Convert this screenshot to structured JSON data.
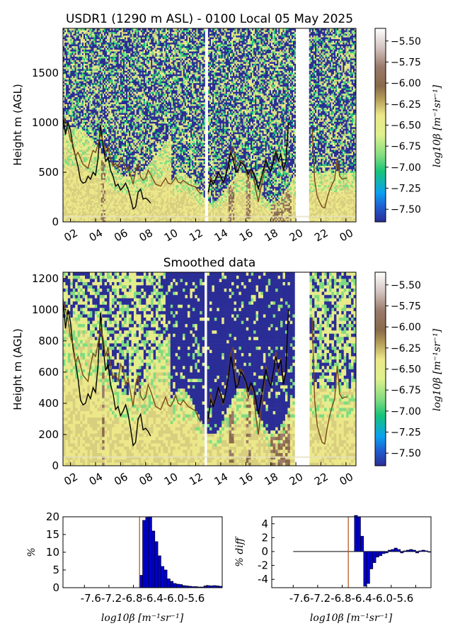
{
  "chart_data": [
    {
      "type": "heatmap",
      "title": "USDR1 (1290 m ASL) - 0100 Local 05 May 2025",
      "ylabel": "Height m (AGL)",
      "x_ticks": [
        "02",
        "04",
        "06",
        "08",
        "10",
        "12",
        "14",
        "16",
        "18",
        "20",
        "22",
        "00"
      ],
      "y_ticks": [
        0,
        500,
        1000,
        1500
      ],
      "ylim": [
        0,
        1950
      ],
      "colorbar_label": "log10β [m⁻¹sr⁻¹]",
      "colorbar_ticks": [
        -5.5,
        -5.75,
        -6.0,
        -6.25,
        -6.5,
        -6.75,
        -7.0,
        -7.25,
        -7.5
      ],
      "colorbar_range": [
        -7.65,
        -5.35
      ],
      "lines": [
        {
          "color": "#000000",
          "x": [
            1.4,
            1.6,
            1.8,
            2.0,
            2.2,
            2.4,
            2.6,
            2.8,
            3.0,
            3.2,
            3.4,
            3.6,
            3.8,
            4.0,
            4.2,
            4.4,
            4.6,
            4.8,
            5.0,
            5.2,
            5.4,
            5.6,
            5.8,
            6.0,
            6.2,
            6.4,
            6.6,
            6.8,
            7.0,
            7.2,
            7.4,
            7.6,
            7.8,
            8.0,
            8.2,
            8.4
          ],
          "y": [
            1070,
            880,
            1000,
            920,
            750,
            660,
            560,
            420,
            390,
            400,
            460,
            430,
            500,
            470,
            640,
            980,
            770,
            610,
            650,
            520,
            460,
            360,
            380,
            320,
            350,
            390,
            330,
            240,
            130,
            150,
            300,
            330,
            230,
            240,
            220,
            190
          ]
        },
        {
          "color": "#7a4a1a",
          "x": [
            1.4,
            1.6,
            1.8,
            2.0,
            2.2,
            2.4,
            2.6,
            2.8,
            3.0,
            3.2,
            3.4,
            3.6,
            3.8,
            4.0,
            4.2,
            4.4,
            4.6,
            4.8,
            5.0,
            5.2,
            5.4,
            5.6,
            5.8,
            6.0,
            6.2,
            6.4,
            6.6,
            6.8,
            7.0,
            7.2,
            7.4,
            7.6,
            7.8,
            8.0,
            8.2,
            8.4,
            8.6,
            8.8,
            9.0,
            9.2,
            9.4,
            9.6,
            9.8,
            10.0,
            10.2,
            10.4,
            10.6,
            10.8,
            11.0,
            11.2,
            11.4,
            11.6,
            11.8,
            12.0,
            12.2,
            12.4
          ],
          "y": [
            1060,
            1000,
            940,
            820,
            780,
            660,
            700,
            640,
            580,
            560,
            540,
            640,
            720,
            700,
            780,
            880,
            820,
            700,
            760,
            640,
            560,
            590,
            540,
            650,
            620,
            520,
            560,
            470,
            380,
            520,
            580,
            450,
            420,
            440,
            520,
            480,
            430,
            380,
            370,
            360,
            400,
            440,
            390,
            380,
            410,
            450,
            400,
            390,
            420,
            400,
            380,
            370,
            360,
            350,
            310,
            280
          ]
        },
        {
          "color": "#7a4a1a",
          "x": [
            13.0,
            13.2,
            13.4,
            13.6,
            13.8,
            14.0,
            14.2,
            14.4,
            14.6,
            14.8,
            15.0,
            15.2,
            15.4,
            15.6,
            15.8,
            16.0,
            16.2,
            16.4,
            16.6,
            16.8,
            17.0,
            17.2,
            17.4,
            17.6,
            17.8,
            18.0,
            18.2,
            18.4,
            18.6,
            18.8,
            19.0,
            19.2,
            19.4
          ],
          "y": [
            280,
            460,
            380,
            420,
            500,
            440,
            390,
            480,
            580,
            720,
            760,
            560,
            510,
            620,
            600,
            520,
            430,
            510,
            480,
            320,
            200,
            340,
            460,
            640,
            560,
            520,
            580,
            730,
            600,
            690,
            550,
            600,
            1000
          ]
        },
        {
          "color": "#000000",
          "x": [
            13.0,
            13.2,
            13.4,
            13.6,
            13.8,
            14.0,
            14.2,
            14.4,
            14.6,
            14.8,
            15.0,
            15.2,
            15.4,
            15.6,
            15.8,
            16.0,
            16.2,
            16.4,
            16.6,
            16.8,
            17.0,
            17.2,
            17.4,
            17.6,
            17.8,
            18.0,
            18.2,
            18.4,
            18.6,
            18.8,
            19.0,
            19.2,
            19.4
          ],
          "y": [
            300,
            420,
            380,
            430,
            500,
            460,
            400,
            470,
            560,
            700,
            620,
            500,
            520,
            600,
            580,
            540,
            480,
            530,
            500,
            430,
            330,
            420,
            520,
            620,
            550,
            510,
            600,
            700,
            620,
            680,
            520,
            600,
            1000
          ]
        },
        {
          "color": "#7a4a1a",
          "x": [
            21.3,
            21.5,
            21.7,
            21.9,
            22.1,
            22.3,
            22.5,
            22.7,
            22.9,
            23.1,
            23.3,
            23.5,
            23.7,
            23.9,
            24.1
          ],
          "y": [
            950,
            420,
            260,
            200,
            150,
            140,
            240,
            320,
            380,
            430,
            640,
            460,
            430,
            440,
            440
          ]
        }
      ]
    },
    {
      "type": "heatmap",
      "title": "Smoothed data",
      "ylabel": "Height m (AGL)",
      "x_ticks": [
        "02",
        "04",
        "06",
        "08",
        "10",
        "12",
        "14",
        "16",
        "18",
        "20",
        "22",
        "00"
      ],
      "y_ticks": [
        0,
        200,
        400,
        600,
        800,
        1000,
        1200
      ],
      "ylim": [
        0,
        1240
      ],
      "colorbar_label": "log10β [m⁻¹sr⁻¹]",
      "colorbar_ticks": [
        -5.5,
        -5.75,
        -6.0,
        -6.25,
        -6.5,
        -6.75,
        -7.0,
        -7.25,
        -7.5
      ],
      "colorbar_range": [
        -7.65,
        -5.35
      ]
    },
    {
      "type": "bar",
      "title": "",
      "xlabel": "log10β [m⁻¹sr⁻¹]",
      "ylabel": "%",
      "x_ticks": [
        "-7.6",
        "-7.2",
        "-6.8",
        "-6.4",
        "-6.0",
        "-5.6"
      ],
      "y_ticks": [
        0,
        5,
        10,
        15,
        20
      ],
      "xlim": [
        -7.95,
        -5.35
      ],
      "ylim": [
        0,
        20
      ],
      "reference_line_x": -6.7,
      "bins_start": -6.7,
      "bin_width": 0.05,
      "values": [
        3.5,
        19,
        19.8,
        20,
        16,
        13,
        9,
        6,
        5,
        2.5,
        1.8,
        1.2,
        1.0,
        0.9,
        0.6,
        0.5,
        0.4,
        0.3,
        0.3,
        0.2,
        0.2,
        0.5,
        0.6,
        0.5,
        0.6,
        0.5,
        0.4
      ]
    },
    {
      "type": "bar",
      "title": "",
      "xlabel": "log10β [m⁻¹sr⁻¹]",
      "ylabel": "% diff",
      "x_ticks": [
        "-7.6",
        "-7.2",
        "-6.8",
        "-6.4",
        "-6.0",
        "-5.6"
      ],
      "y_ticks": [
        -4,
        -2,
        0,
        2,
        4
      ],
      "xlim": [
        -7.95,
        -5.35
      ],
      "ylim": [
        -5.2,
        5.0
      ],
      "reference_line_x": -6.7,
      "bins_start": -6.6,
      "bin_width": 0.05,
      "values": [
        5.2,
        5.0,
        2.2,
        -5.0,
        -4.6,
        -2.5,
        -1.6,
        -0.8,
        -0.6,
        -0.3,
        -0.2,
        0.2,
        0.3,
        0.5,
        0.3,
        -0.2,
        0.1,
        0.2,
        0.3,
        0.2,
        -0.2,
        0.1,
        0.2,
        0.1,
        -0.1
      ],
      "zero_line_from": -7.6,
      "zero_line_to": -5.52
    }
  ]
}
